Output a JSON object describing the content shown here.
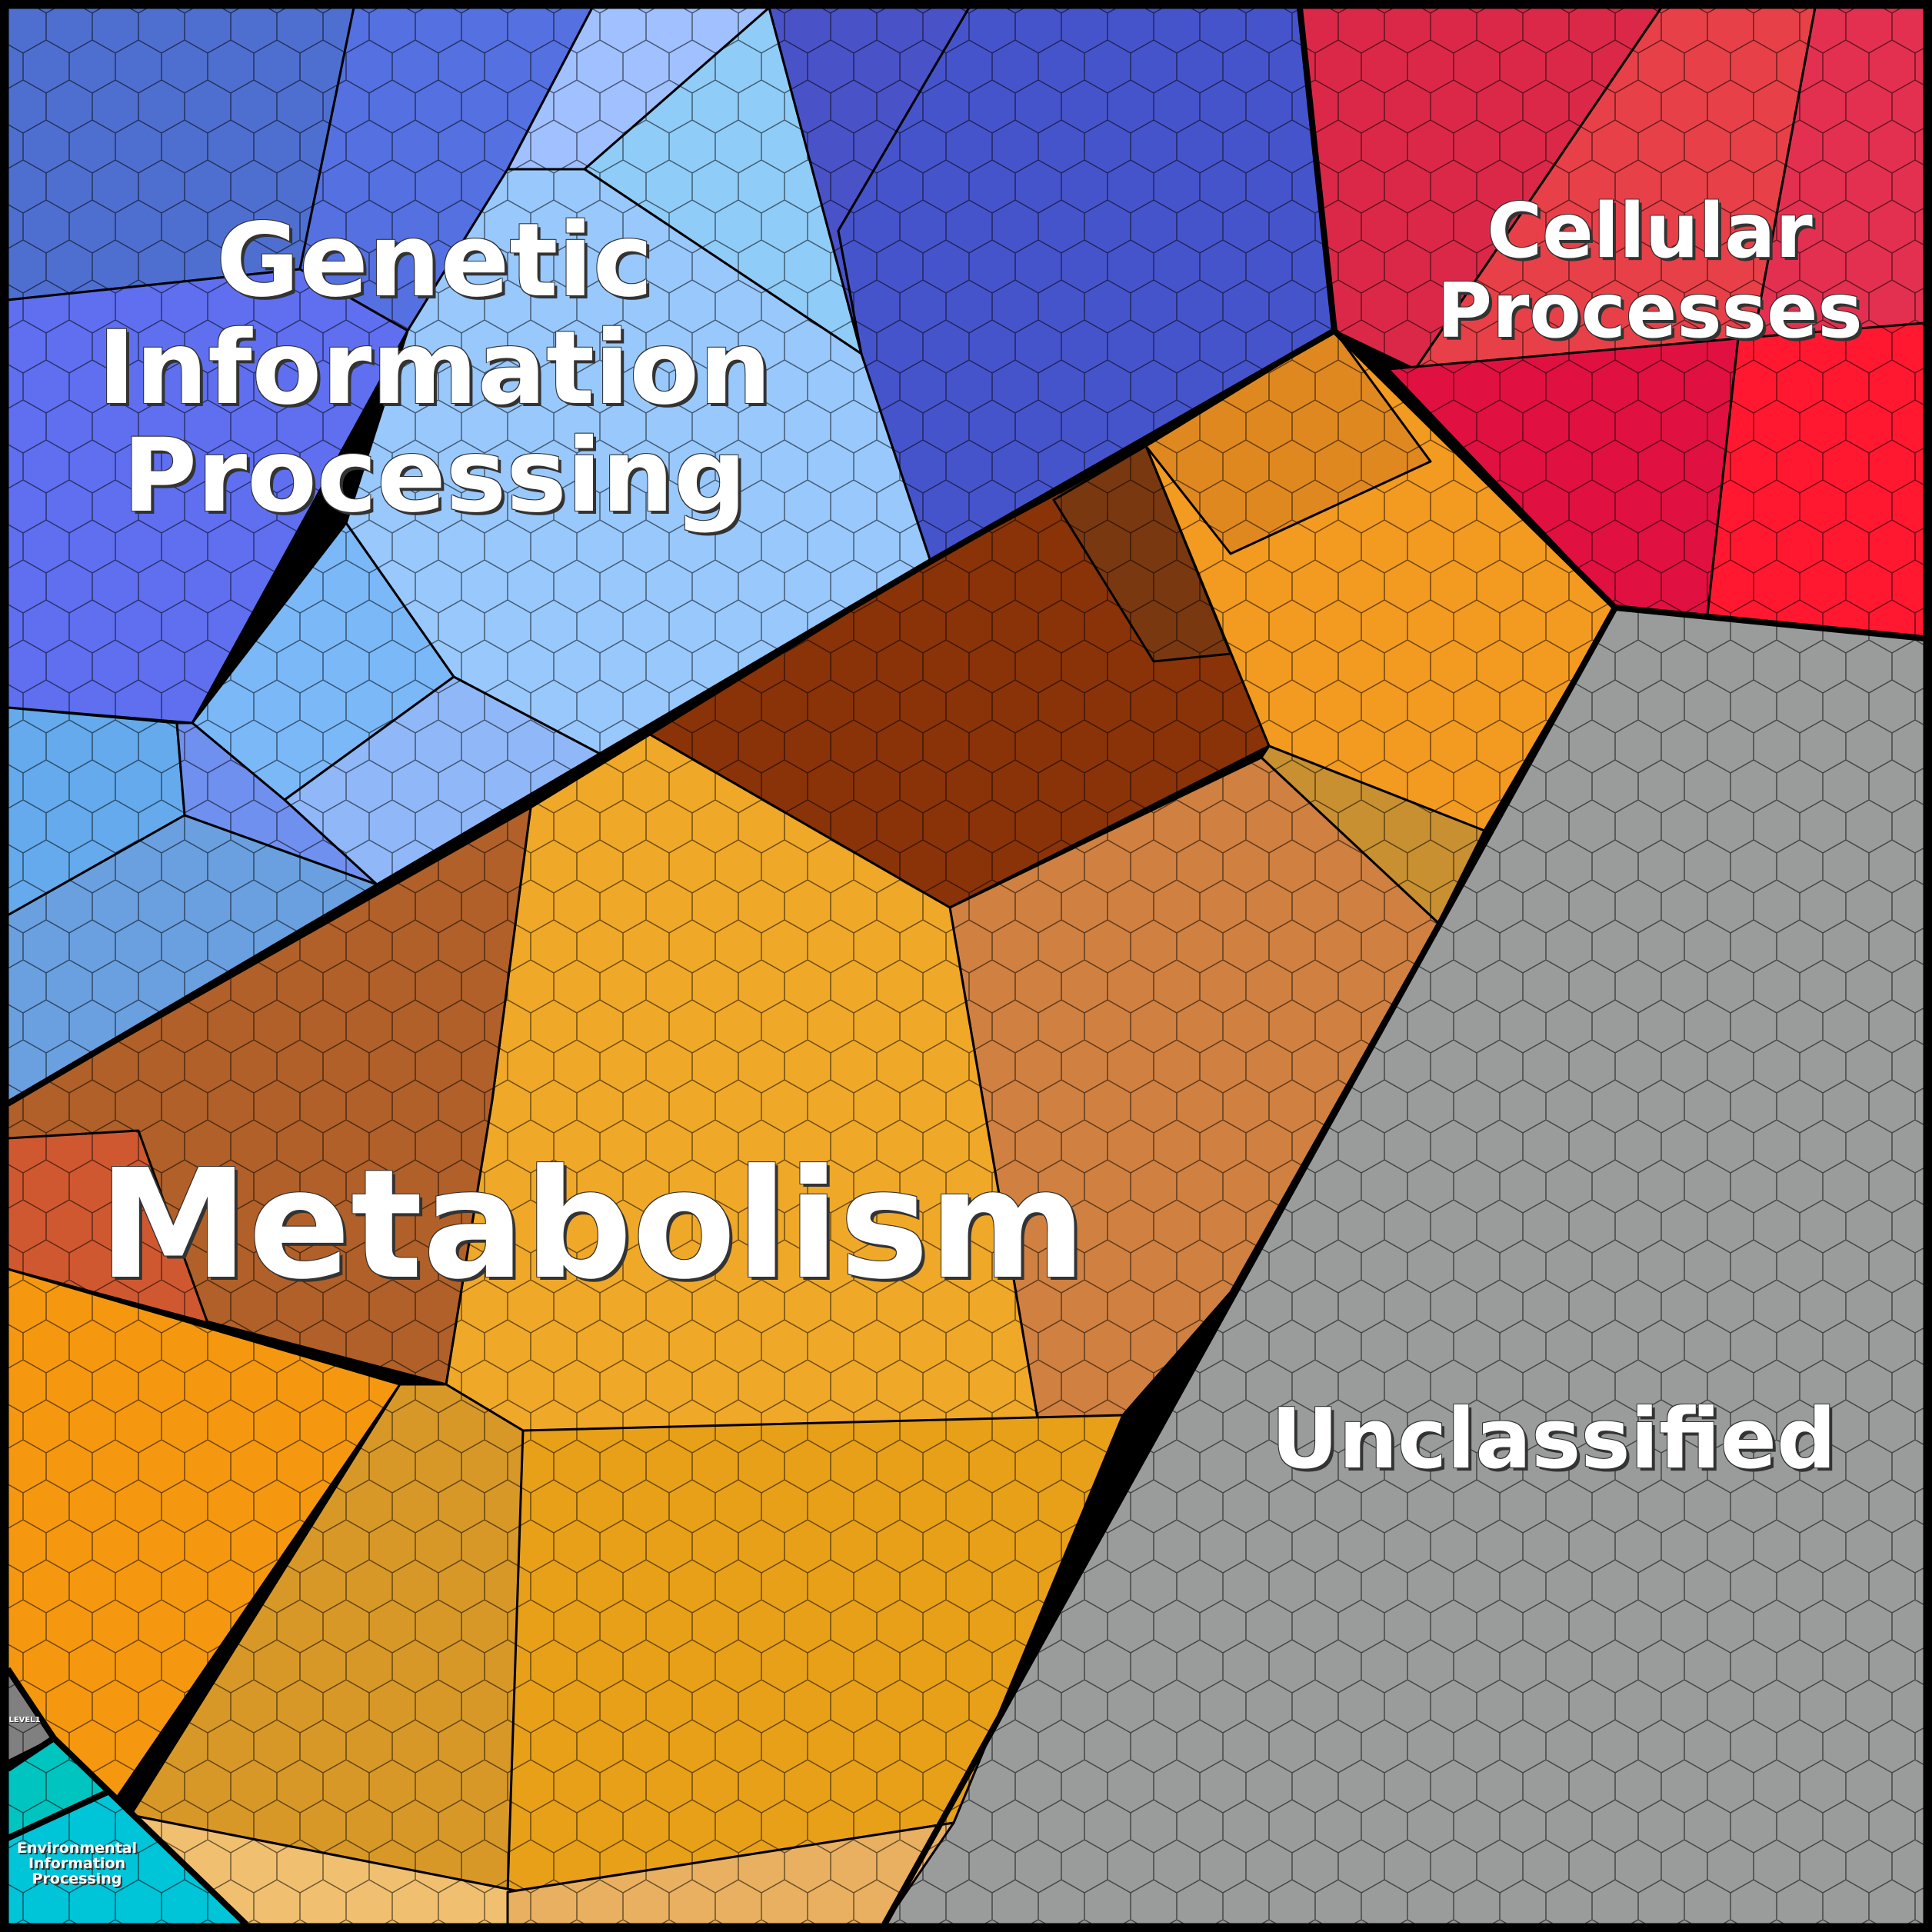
{
  "regions": {
    "genetic": {
      "lines": [
        "Genetic",
        "Information",
        "Processing"
      ],
      "color": "#5570e0"
    },
    "cellular": {
      "lines": [
        "Cellular",
        "Processes"
      ],
      "color": "#e02848"
    },
    "metabolism": {
      "label": "Metabolism",
      "color": "#f0a828"
    },
    "unclassified": {
      "label": "Unclassified",
      "color": "#9a9c9c"
    },
    "environmental": {
      "lines": [
        "Environmental",
        "Information",
        "Processing"
      ],
      "color": "#00c4d8"
    },
    "level1": {
      "label": "LEVEL1",
      "color": "#808080"
    }
  }
}
